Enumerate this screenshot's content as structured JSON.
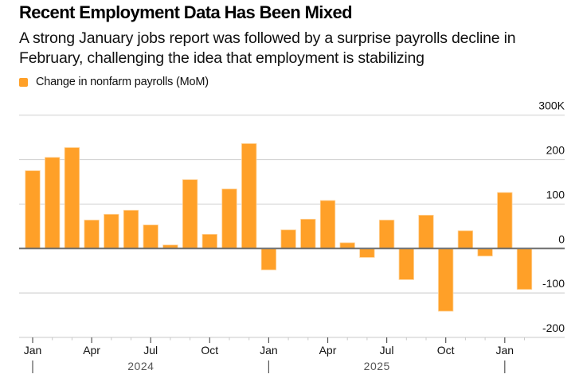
{
  "header": {
    "title": "Recent Employment Data Has Been Mixed",
    "subtitle": "A strong January jobs report was followed by a surprise payrolls decline in February, challenging the idea that employment is stabilizing"
  },
  "colors": {
    "bar": "#FFA028",
    "bar_edge": "#FFD39A",
    "gridline": "#D4D4D4",
    "zero_line": "#6E6E6E",
    "axis": "#C8C8C8",
    "tick": "#555555"
  },
  "chart_data": {
    "type": "bar",
    "title": "Recent Employment Data Has Been Mixed",
    "xlabel": "",
    "ylabel": "",
    "legend": [
      {
        "name": "Change in nonfarm payrolls (MoM)",
        "position": "top-left"
      }
    ],
    "grid": true,
    "y_axis_side": "right",
    "ylim": [
      -200,
      300
    ],
    "yticks": [
      {
        "value": 300,
        "label": "300K"
      },
      {
        "value": 200,
        "label": "200"
      },
      {
        "value": 100,
        "label": "100"
      },
      {
        "value": 0,
        "label": "0"
      },
      {
        "value": -100,
        "label": "-100"
      },
      {
        "value": -200,
        "label": "-200"
      }
    ],
    "categories": [
      "2024-01",
      "2024-02",
      "2024-03",
      "2024-04",
      "2024-05",
      "2024-06",
      "2024-07",
      "2024-08",
      "2024-09",
      "2024-10",
      "2024-11",
      "2024-12",
      "2025-01",
      "2025-02",
      "2025-03",
      "2025-04",
      "2025-05",
      "2025-06",
      "2025-07",
      "2025-08",
      "2025-09",
      "2025-10",
      "2025-11",
      "2025-12",
      "2026-01",
      "2026-02"
    ],
    "series": [
      {
        "name": "Change in nonfarm payrolls (MoM)",
        "values": [
          175,
          205,
          227,
          64,
          77,
          86,
          53,
          8,
          155,
          32,
          134,
          236,
          -48,
          42,
          66,
          108,
          13,
          -20,
          64,
          -70,
          75,
          -141,
          40,
          -17,
          126,
          -92
        ]
      }
    ],
    "xticks": [
      {
        "index": 0,
        "label": "Jan"
      },
      {
        "index": 3,
        "label": "Apr"
      },
      {
        "index": 6,
        "label": "Jul"
      },
      {
        "index": 9,
        "label": "Oct"
      },
      {
        "index": 12,
        "label": "Jan"
      },
      {
        "index": 15,
        "label": "Apr"
      },
      {
        "index": 18,
        "label": "Jul"
      },
      {
        "index": 21,
        "label": "Oct"
      },
      {
        "index": 24,
        "label": "Jan"
      }
    ],
    "year_labels": [
      {
        "label": "2024",
        "start_index": 0,
        "end_index": 11
      },
      {
        "label": "2025",
        "start_index": 12,
        "end_index": 23
      }
    ],
    "year_separators": [
      0,
      12,
      24
    ]
  }
}
